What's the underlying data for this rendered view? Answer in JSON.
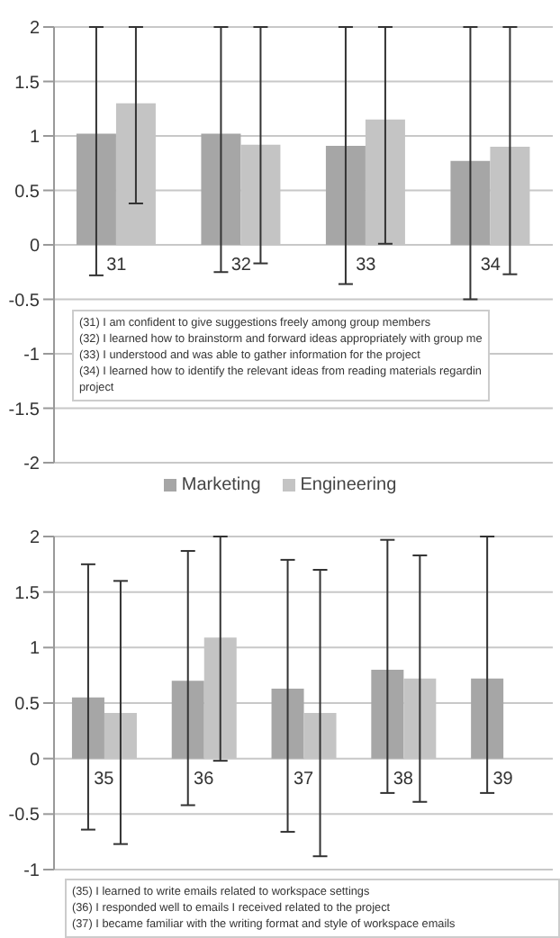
{
  "chart_data": [
    {
      "type": "bar",
      "categories": [
        "31",
        "32",
        "33",
        "34"
      ],
      "series": [
        {
          "name": "Marketing",
          "color": "#a6a6a6",
          "values": [
            1.02,
            1.02,
            0.91,
            0.77
          ],
          "errors": [
            [
              -0.28,
              2
            ],
            [
              -0.25,
              2
            ],
            [
              -0.36,
              2
            ],
            [
              -0.5,
              2
            ]
          ]
        },
        {
          "name": "Engineering",
          "color": "#c4c4c4",
          "values": [
            1.3,
            0.92,
            1.15,
            0.9
          ],
          "errors": [
            [
              0.38,
              2
            ],
            [
              -0.17,
              2
            ],
            [
              0.01,
              2
            ],
            [
              -0.27,
              2
            ]
          ]
        }
      ],
      "ylim": [
        -2,
        2
      ],
      "yticks": [
        -2,
        -1.5,
        -1,
        -0.5,
        0,
        0.5,
        1,
        1.5,
        2
      ],
      "grid": "y",
      "legend": "bottom",
      "annotations": [
        "(31) I am confident to give suggestions freely among group members",
        "(32) I learned how to brainstorm and forward ideas appropriately with group me",
        "(33) I understood and was able to gather information for the project",
        "(34) I learned how to identify the relevant ideas from reading materials regardin",
        "project"
      ]
    },
    {
      "type": "bar",
      "categories": [
        "35",
        "36",
        "37",
        "38",
        "39"
      ],
      "series": [
        {
          "color": "#a6a6a6",
          "values": [
            0.55,
            0.7,
            0.63,
            0.8,
            0.72
          ],
          "errors": [
            [
              -0.64,
              1.75
            ],
            [
              -0.42,
              1.87
            ],
            [
              -0.66,
              1.79
            ],
            [
              -0.31,
              1.97
            ],
            [
              -0.31,
              2
            ]
          ]
        },
        {
          "color": "#c4c4c4",
          "values": [
            0.41,
            1.09,
            0.41,
            0.72,
            null
          ],
          "errors": [
            [
              -0.77,
              1.6
            ],
            [
              -0.02,
              2
            ],
            [
              -0.88,
              1.7
            ],
            [
              -0.39,
              1.83
            ],
            null
          ]
        }
      ],
      "ylim": [
        -1,
        2
      ],
      "yticks": [
        -1,
        -0.5,
        0,
        0.5,
        1,
        1.5,
        2
      ],
      "grid": "y",
      "annotations": [
        "(35) I learned to write emails related to workspace settings",
        "(36) I responded well to emails I received related to the project",
        "(37) I became familiar with the writing format and style of workspace emails"
      ]
    }
  ]
}
